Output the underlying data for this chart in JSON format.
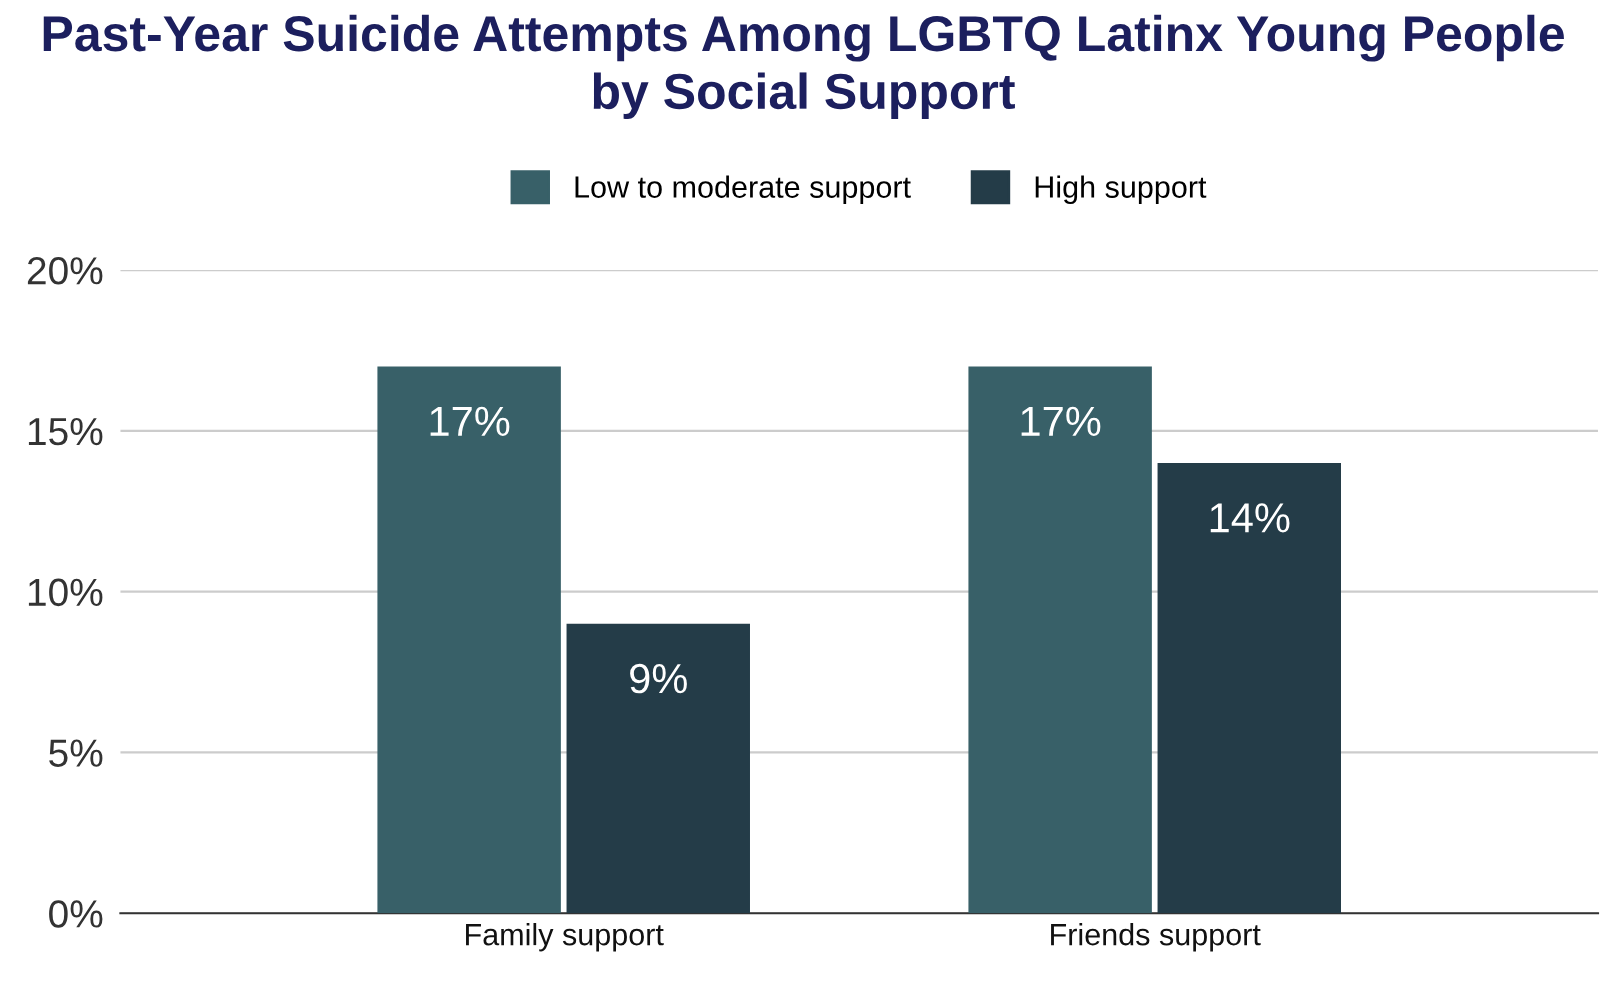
{
  "chart_data": {
    "type": "bar",
    "title": "Past-Year Suicide Attempts Among LGBTQ Latinx Young People\nby Social Support",
    "categories": [
      "Family support",
      "Friends support"
    ],
    "series": [
      {
        "name": "Low to moderate support",
        "color": "#386068",
        "values": [
          17,
          17
        ],
        "value_labels": [
          "17%",
          "17%"
        ]
      },
      {
        "name": "High support",
        "color": "#243c48",
        "values": [
          9,
          14
        ],
        "value_labels": [
          "9%",
          "14%"
        ]
      }
    ],
    "ylim": [
      0,
      20
    ],
    "yticks": [
      {
        "value": 0,
        "label": "0%"
      },
      {
        "value": 5,
        "label": "5%"
      },
      {
        "value": 10,
        "label": "10%"
      },
      {
        "value": 15,
        "label": "15%"
      },
      {
        "value": 20,
        "label": "20%"
      }
    ],
    "grid": "y",
    "legend": "top"
  }
}
